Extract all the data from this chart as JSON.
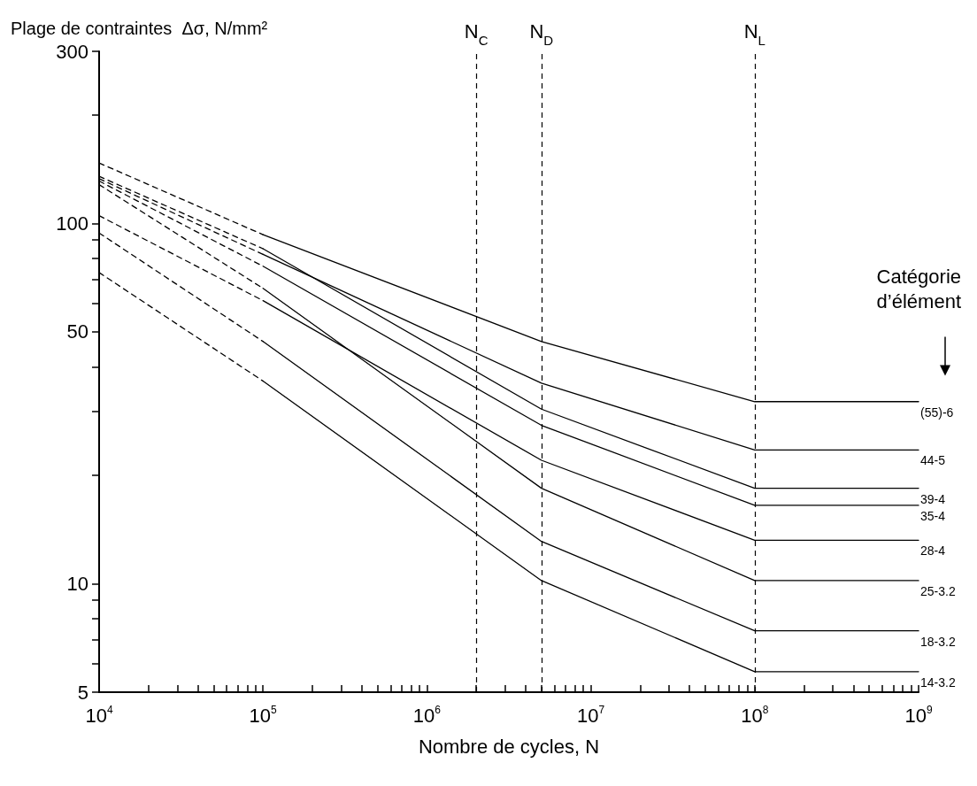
{
  "chart_data": {
    "type": "line",
    "ylabel": "Plage de contraintes  Δσ, N/mm²",
    "xlabel": "Nombre de cycles, N",
    "log": "xy",
    "grid": false,
    "legend": false,
    "marker": "none",
    "xlim": [
      10000,
      1000000000
    ],
    "ylim": [
      5,
      300
    ],
    "xticks": [
      {
        "value": 10000,
        "label": "10$^{4}$"
      },
      {
        "value": 20000,
        "label": null
      },
      {
        "value": 30000,
        "label": null
      },
      {
        "value": 40000,
        "label": null
      },
      {
        "value": 50000,
        "label": null
      },
      {
        "value": 60000,
        "label": null
      },
      {
        "value": 70000,
        "label": null
      },
      {
        "value": 80000,
        "label": null
      },
      {
        "value": 90000,
        "label": null
      },
      {
        "value": 100000,
        "label": "10$^{5}$"
      },
      {
        "value": 200000,
        "label": null
      },
      {
        "value": 300000,
        "label": null
      },
      {
        "value": 400000,
        "label": null
      },
      {
        "value": 500000,
        "label": null
      },
      {
        "value": 600000,
        "label": null
      },
      {
        "value": 700000,
        "label": null
      },
      {
        "value": 800000,
        "label": null
      },
      {
        "value": 900000,
        "label": null
      },
      {
        "value": 1000000,
        "label": "10$^{6}$"
      },
      {
        "value": 2000000,
        "label": null
      },
      {
        "value": 3000000,
        "label": null
      },
      {
        "value": 4000000,
        "label": null
      },
      {
        "value": 5000000,
        "label": null
      },
      {
        "value": 6000000,
        "label": null
      },
      {
        "value": 7000000,
        "label": null
      },
      {
        "value": 8000000,
        "label": null
      },
      {
        "value": 9000000,
        "label": null
      },
      {
        "value": 10000000,
        "label": "10$^{7}$"
      },
      {
        "value": 20000000,
        "label": null
      },
      {
        "value": 30000000,
        "label": null
      },
      {
        "value": 40000000,
        "label": null
      },
      {
        "value": 50000000,
        "label": null
      },
      {
        "value": 60000000,
        "label": null
      },
      {
        "value": 70000000,
        "label": null
      },
      {
        "value": 80000000,
        "label": null
      },
      {
        "value": 90000000,
        "label": null
      },
      {
        "value": 100000000,
        "label": "10$^{8}$"
      },
      {
        "value": 200000000,
        "label": null
      },
      {
        "value": 300000000,
        "label": null
      },
      {
        "value": 400000000,
        "label": null
      },
      {
        "value": 500000000,
        "label": null
      },
      {
        "value": 600000000,
        "label": null
      },
      {
        "value": 700000000,
        "label": null
      },
      {
        "value": 800000000,
        "label": null
      },
      {
        "value": 900000000,
        "label": null
      },
      {
        "value": 1000000000,
        "label": "10$^{9}$"
      }
    ],
    "yticks": [
      5,
      {
        "value": 6,
        "label": null
      },
      {
        "value": 7,
        "label": null
      },
      {
        "value": 8,
        "label": null
      },
      {
        "value": 9,
        "label": null
      },
      10,
      {
        "value": 20,
        "label": null
      },
      {
        "value": 30,
        "label": null
      },
      {
        "value": 40,
        "label": null
      },
      50,
      {
        "value": 60,
        "label": null
      },
      {
        "value": 70,
        "label": null
      },
      {
        "value": 80,
        "label": null
      },
      {
        "value": 90,
        "label": null
      },
      100,
      {
        "value": 200,
        "label": null
      },
      300
    ],
    "ref_lines": [
      {
        "axis": "x",
        "value": 2000000,
        "label": "N$_{C}$",
        "line_style": "dashed"
      },
      {
        "axis": "x",
        "value": 5000000,
        "label": "N$_{D}$",
        "line_style": "dashed"
      },
      {
        "axis": "x",
        "value": 100000000,
        "label": "N$_{L}$",
        "line_style": "dashed"
      }
    ],
    "annotations": [
      "Catégorie d’élément"
    ],
    "series": [
      {
        "name": "(55)-6",
        "color": "#000000",
        "line_style": "solid",
        "x": [
          100000,
          5000000,
          100000000,
          1000000000
        ],
        "values": [
          93,
          47,
          32,
          32
        ]
      },
      {
        "color": "#000000",
        "line_style": "dashed",
        "x": [
          10000,
          100000
        ],
        "values": [
          147,
          93
        ]
      },
      {
        "name": "44-5",
        "color": "#000000",
        "line_style": "solid",
        "x": [
          100000,
          5000000,
          100000000,
          1000000000
        ],
        "values": [
          82,
          36,
          23.5,
          23.5
        ]
      },
      {
        "color": "#000000",
        "line_style": "dashed",
        "x": [
          10000,
          100000
        ],
        "values": [
          133,
          82
        ]
      },
      {
        "name": "39-4",
        "color": "#000000",
        "line_style": "solid",
        "x": [
          100000,
          5000000,
          100000000,
          1000000000
        ],
        "values": [
          85,
          30.5,
          18.4,
          18.4
        ]
      },
      {
        "color": "#000000",
        "line_style": "dashed",
        "x": [
          10000,
          100000
        ],
        "values": [
          135,
          85
        ]
      },
      {
        "name": "35-4",
        "color": "#000000",
        "line_style": "solid",
        "x": [
          100000,
          5000000,
          100000000,
          1000000000
        ],
        "values": [
          76,
          27.5,
          16.5,
          16.5
        ]
      },
      {
        "color": "#000000",
        "line_style": "dashed",
        "x": [
          10000,
          100000
        ],
        "values": [
          131,
          76
        ]
      },
      {
        "name": "28-4",
        "color": "#000000",
        "line_style": "solid",
        "x": [
          100000,
          5000000,
          100000000,
          1000000000
        ],
        "values": [
          61,
          22,
          13.2,
          13.2
        ]
      },
      {
        "color": "#000000",
        "line_style": "dashed",
        "x": [
          10000,
          100000
        ],
        "values": [
          105,
          61
        ]
      },
      {
        "name": "25-3.2",
        "color": "#000000",
        "line_style": "solid",
        "x": [
          100000,
          5000000,
          100000000,
          1000000000
        ],
        "values": [
          66,
          18.4,
          10.2,
          10.2
        ]
      },
      {
        "color": "#000000",
        "line_style": "dashed",
        "x": [
          10000,
          100000
        ],
        "values": [
          128,
          66
        ]
      },
      {
        "name": "18-3.2",
        "color": "#000000",
        "line_style": "solid",
        "x": [
          100000,
          5000000,
          100000000,
          1000000000
        ],
        "values": [
          47,
          13.1,
          7.4,
          7.4
        ]
      },
      {
        "color": "#000000",
        "line_style": "dashed",
        "x": [
          10000,
          100000
        ],
        "values": [
          94,
          47
        ]
      },
      {
        "name": "14-3.2",
        "color": "#000000",
        "line_style": "solid",
        "x": [
          100000,
          5000000,
          100000000,
          1000000000
        ],
        "values": [
          36.5,
          10.2,
          5.7,
          5.7
        ]
      },
      {
        "color": "#000000",
        "line_style": "dashed",
        "x": [
          10000,
          100000
        ],
        "values": [
          73,
          36.5
        ]
      }
    ]
  }
}
